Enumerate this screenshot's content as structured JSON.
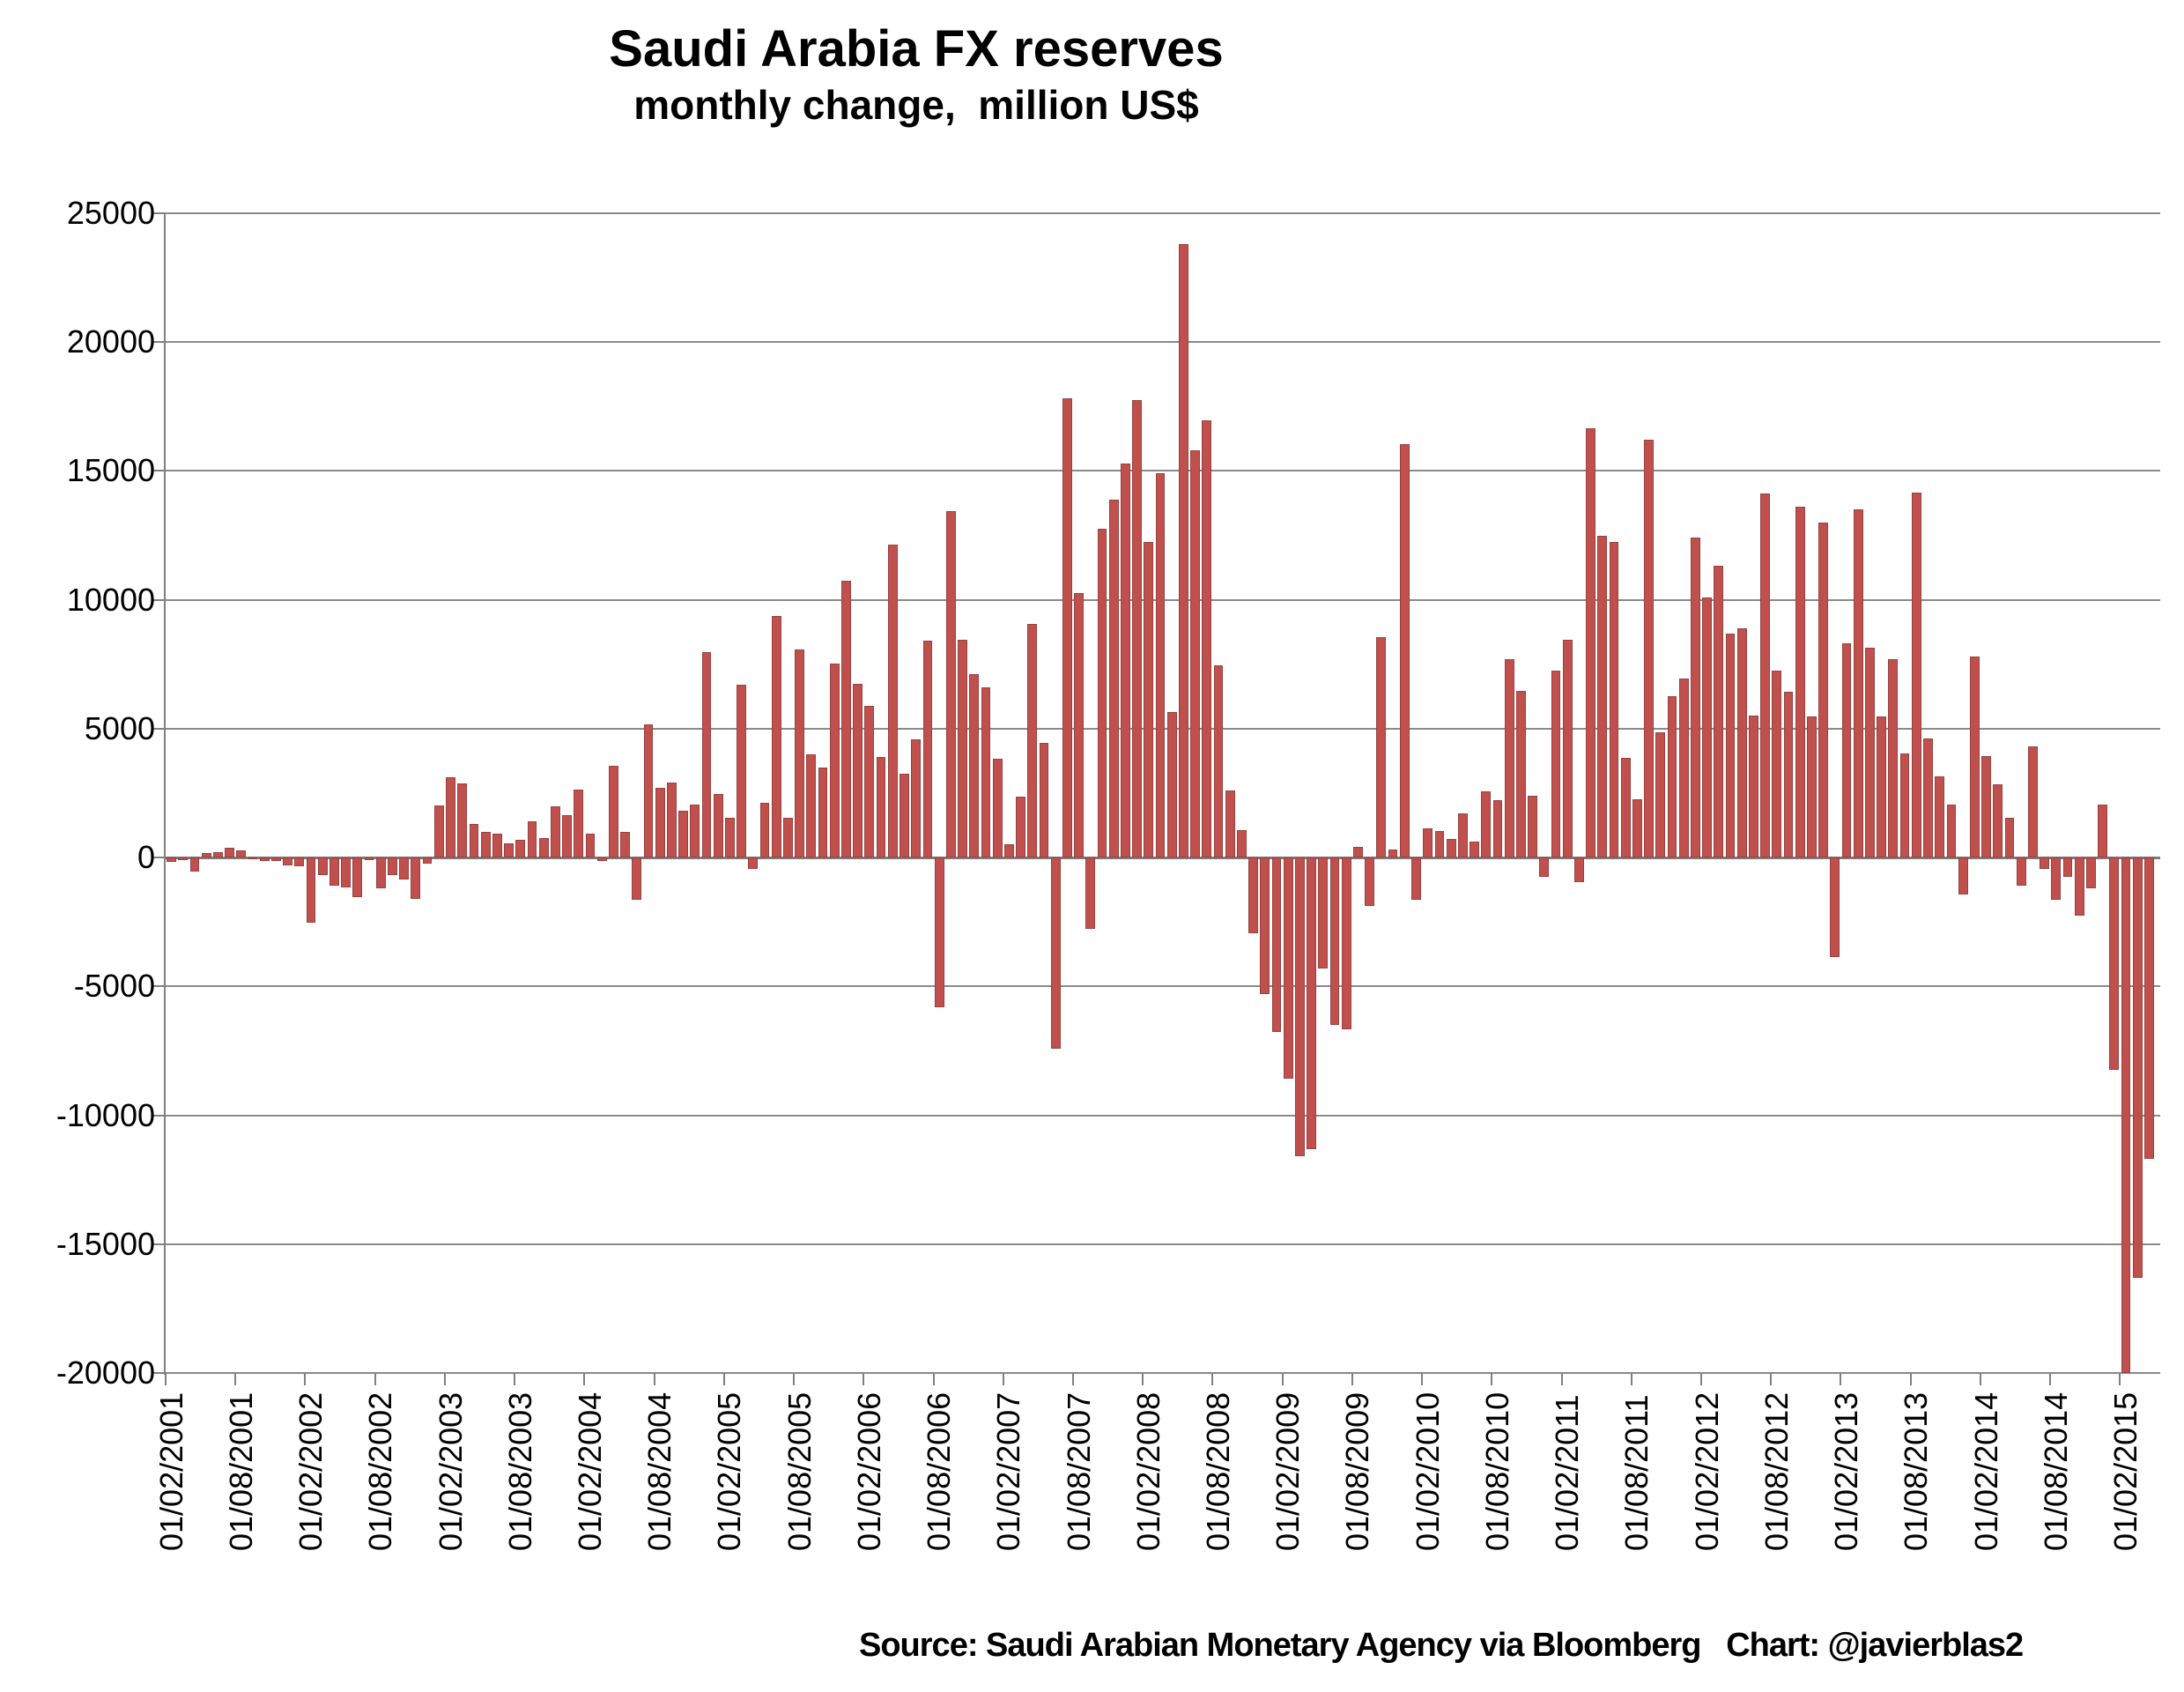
{
  "title": "Saudi Arabia FX reserves",
  "subtitle": "monthly change,  million US$",
  "source_note": "Source: Saudi Arabian Monetary Agency via Bloomberg   Chart: @javierblas2",
  "chart_data": {
    "type": "bar",
    "title": "Saudi Arabia FX reserves",
    "subtitle": "monthly change,  million US$",
    "xlabel": "",
    "ylabel": "",
    "ylim": [
      -20000,
      25000
    ],
    "ytick_step": 5000,
    "y_tick_labels": [
      "25000",
      "20000",
      "15000",
      "10000",
      "5000",
      "0",
      "-5000",
      "-10000",
      "-15000",
      "-20000"
    ],
    "grid": true,
    "legend": "none",
    "bar_color": "#C0504D",
    "bar_border_color": "#99423E",
    "grid_color": "#8A8A8A",
    "x_label_every": 6,
    "x_labels": [
      "01/02/2001",
      "01/08/2001",
      "01/02/2002",
      "01/08/2002",
      "01/02/2003",
      "01/08/2003",
      "01/02/2004",
      "01/08/2004",
      "01/02/2005",
      "01/08/2005",
      "01/02/2006",
      "01/08/2006",
      "01/02/2007",
      "01/08/2007",
      "01/02/2008",
      "01/08/2008",
      "01/02/2009",
      "01/08/2009",
      "01/02/2010",
      "01/08/2010",
      "01/02/2011",
      "01/08/2011",
      "01/02/2012",
      "01/08/2012",
      "01/02/2013",
      "01/08/2013",
      "01/02/2014",
      "01/08/2014",
      "01/02/2015"
    ],
    "start_period": "02/2001",
    "end_period": "04/2015",
    "values": [
      -170,
      -90,
      -550,
      170,
      200,
      370,
      290,
      -60,
      -140,
      -120,
      -290,
      -350,
      -2530,
      -690,
      -1090,
      -1170,
      -1550,
      -115,
      -1210,
      -690,
      -860,
      -1610,
      -250,
      2010,
      3100,
      2870,
      1320,
      980,
      920,
      550,
      690,
      1400,
      760,
      1985,
      1640,
      2630,
      930,
      -120,
      3565,
      990,
      -1635,
      5175,
      2690,
      2920,
      1810,
      2045,
      7980,
      2450,
      1555,
      6715,
      -450,
      2120,
      9390,
      1555,
      8090,
      4000,
      3500,
      7530,
      10750,
      6730,
      5870,
      3900,
      12150,
      3250,
      4600,
      8400,
      -5800,
      13450,
      8450,
      7100,
      6600,
      3850,
      520,
      2350,
      9050,
      4450,
      -7400,
      17820,
      10250,
      -2750,
      12750,
      13900,
      15300,
      17750,
      12250,
      14900,
      5650,
      23800,
      15800,
      16950,
      7450,
      2600,
      1050,
      -2950,
      -5300,
      -6750,
      -8570,
      -11580,
      -11300,
      -4300,
      -6480,
      -6650,
      410,
      -1880,
      8550,
      300,
      16050,
      -1650,
      1130,
      1030,
      720,
      1710,
      630,
      2570,
      2230,
      7700,
      6450,
      2400,
      -750,
      7250,
      8450,
      -950,
      16640,
      12500,
      12260,
      3870,
      2250,
      16200,
      4850,
      6270,
      6950,
      12430,
      10100,
      11330,
      8700,
      8900,
      5520,
      14140,
      7240,
      6440,
      13630,
      5480,
      13000,
      -3850,
      8320,
      13500,
      8150,
      5480,
      7700,
      4040,
      14150,
      4620,
      3150,
      2060,
      -1440,
      7810,
      3940,
      2840,
      1540,
      -1090,
      4310,
      -450,
      -1640,
      -760,
      -2250,
      -1180,
      2050,
      -8230,
      -20000,
      -16300,
      -11700
    ]
  }
}
